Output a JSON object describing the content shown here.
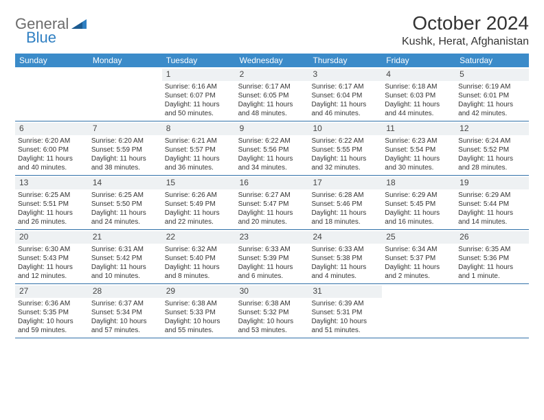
{
  "logo": {
    "text1": "General",
    "text2": "Blue"
  },
  "title": "October 2024",
  "location": "Kushk, Herat, Afghanistan",
  "colors": {
    "header_bg": "#3b8bc9",
    "row_border": "#2f6fa8",
    "daynum_bg": "#eef1f3",
    "logo_gray": "#6b6b6b",
    "logo_blue": "#2f7fc2"
  },
  "dow": [
    "Sunday",
    "Monday",
    "Tuesday",
    "Wednesday",
    "Thursday",
    "Friday",
    "Saturday"
  ],
  "weeks": [
    [
      {
        "n": "",
        "sr": "",
        "ss": "",
        "dl1": "",
        "dl2": ""
      },
      {
        "n": "",
        "sr": "",
        "ss": "",
        "dl1": "",
        "dl2": ""
      },
      {
        "n": "1",
        "sr": "Sunrise: 6:16 AM",
        "ss": "Sunset: 6:07 PM",
        "dl1": "Daylight: 11 hours",
        "dl2": "and 50 minutes."
      },
      {
        "n": "2",
        "sr": "Sunrise: 6:17 AM",
        "ss": "Sunset: 6:05 PM",
        "dl1": "Daylight: 11 hours",
        "dl2": "and 48 minutes."
      },
      {
        "n": "3",
        "sr": "Sunrise: 6:17 AM",
        "ss": "Sunset: 6:04 PM",
        "dl1": "Daylight: 11 hours",
        "dl2": "and 46 minutes."
      },
      {
        "n": "4",
        "sr": "Sunrise: 6:18 AM",
        "ss": "Sunset: 6:03 PM",
        "dl1": "Daylight: 11 hours",
        "dl2": "and 44 minutes."
      },
      {
        "n": "5",
        "sr": "Sunrise: 6:19 AM",
        "ss": "Sunset: 6:01 PM",
        "dl1": "Daylight: 11 hours",
        "dl2": "and 42 minutes."
      }
    ],
    [
      {
        "n": "6",
        "sr": "Sunrise: 6:20 AM",
        "ss": "Sunset: 6:00 PM",
        "dl1": "Daylight: 11 hours",
        "dl2": "and 40 minutes."
      },
      {
        "n": "7",
        "sr": "Sunrise: 6:20 AM",
        "ss": "Sunset: 5:59 PM",
        "dl1": "Daylight: 11 hours",
        "dl2": "and 38 minutes."
      },
      {
        "n": "8",
        "sr": "Sunrise: 6:21 AM",
        "ss": "Sunset: 5:57 PM",
        "dl1": "Daylight: 11 hours",
        "dl2": "and 36 minutes."
      },
      {
        "n": "9",
        "sr": "Sunrise: 6:22 AM",
        "ss": "Sunset: 5:56 PM",
        "dl1": "Daylight: 11 hours",
        "dl2": "and 34 minutes."
      },
      {
        "n": "10",
        "sr": "Sunrise: 6:22 AM",
        "ss": "Sunset: 5:55 PM",
        "dl1": "Daylight: 11 hours",
        "dl2": "and 32 minutes."
      },
      {
        "n": "11",
        "sr": "Sunrise: 6:23 AM",
        "ss": "Sunset: 5:54 PM",
        "dl1": "Daylight: 11 hours",
        "dl2": "and 30 minutes."
      },
      {
        "n": "12",
        "sr": "Sunrise: 6:24 AM",
        "ss": "Sunset: 5:52 PM",
        "dl1": "Daylight: 11 hours",
        "dl2": "and 28 minutes."
      }
    ],
    [
      {
        "n": "13",
        "sr": "Sunrise: 6:25 AM",
        "ss": "Sunset: 5:51 PM",
        "dl1": "Daylight: 11 hours",
        "dl2": "and 26 minutes."
      },
      {
        "n": "14",
        "sr": "Sunrise: 6:25 AM",
        "ss": "Sunset: 5:50 PM",
        "dl1": "Daylight: 11 hours",
        "dl2": "and 24 minutes."
      },
      {
        "n": "15",
        "sr": "Sunrise: 6:26 AM",
        "ss": "Sunset: 5:49 PM",
        "dl1": "Daylight: 11 hours",
        "dl2": "and 22 minutes."
      },
      {
        "n": "16",
        "sr": "Sunrise: 6:27 AM",
        "ss": "Sunset: 5:47 PM",
        "dl1": "Daylight: 11 hours",
        "dl2": "and 20 minutes."
      },
      {
        "n": "17",
        "sr": "Sunrise: 6:28 AM",
        "ss": "Sunset: 5:46 PM",
        "dl1": "Daylight: 11 hours",
        "dl2": "and 18 minutes."
      },
      {
        "n": "18",
        "sr": "Sunrise: 6:29 AM",
        "ss": "Sunset: 5:45 PM",
        "dl1": "Daylight: 11 hours",
        "dl2": "and 16 minutes."
      },
      {
        "n": "19",
        "sr": "Sunrise: 6:29 AM",
        "ss": "Sunset: 5:44 PM",
        "dl1": "Daylight: 11 hours",
        "dl2": "and 14 minutes."
      }
    ],
    [
      {
        "n": "20",
        "sr": "Sunrise: 6:30 AM",
        "ss": "Sunset: 5:43 PM",
        "dl1": "Daylight: 11 hours",
        "dl2": "and 12 minutes."
      },
      {
        "n": "21",
        "sr": "Sunrise: 6:31 AM",
        "ss": "Sunset: 5:42 PM",
        "dl1": "Daylight: 11 hours",
        "dl2": "and 10 minutes."
      },
      {
        "n": "22",
        "sr": "Sunrise: 6:32 AM",
        "ss": "Sunset: 5:40 PM",
        "dl1": "Daylight: 11 hours",
        "dl2": "and 8 minutes."
      },
      {
        "n": "23",
        "sr": "Sunrise: 6:33 AM",
        "ss": "Sunset: 5:39 PM",
        "dl1": "Daylight: 11 hours",
        "dl2": "and 6 minutes."
      },
      {
        "n": "24",
        "sr": "Sunrise: 6:33 AM",
        "ss": "Sunset: 5:38 PM",
        "dl1": "Daylight: 11 hours",
        "dl2": "and 4 minutes."
      },
      {
        "n": "25",
        "sr": "Sunrise: 6:34 AM",
        "ss": "Sunset: 5:37 PM",
        "dl1": "Daylight: 11 hours",
        "dl2": "and 2 minutes."
      },
      {
        "n": "26",
        "sr": "Sunrise: 6:35 AM",
        "ss": "Sunset: 5:36 PM",
        "dl1": "Daylight: 11 hours",
        "dl2": "and 1 minute."
      }
    ],
    [
      {
        "n": "27",
        "sr": "Sunrise: 6:36 AM",
        "ss": "Sunset: 5:35 PM",
        "dl1": "Daylight: 10 hours",
        "dl2": "and 59 minutes."
      },
      {
        "n": "28",
        "sr": "Sunrise: 6:37 AM",
        "ss": "Sunset: 5:34 PM",
        "dl1": "Daylight: 10 hours",
        "dl2": "and 57 minutes."
      },
      {
        "n": "29",
        "sr": "Sunrise: 6:38 AM",
        "ss": "Sunset: 5:33 PM",
        "dl1": "Daylight: 10 hours",
        "dl2": "and 55 minutes."
      },
      {
        "n": "30",
        "sr": "Sunrise: 6:38 AM",
        "ss": "Sunset: 5:32 PM",
        "dl1": "Daylight: 10 hours",
        "dl2": "and 53 minutes."
      },
      {
        "n": "31",
        "sr": "Sunrise: 6:39 AM",
        "ss": "Sunset: 5:31 PM",
        "dl1": "Daylight: 10 hours",
        "dl2": "and 51 minutes."
      },
      {
        "n": "",
        "sr": "",
        "ss": "",
        "dl1": "",
        "dl2": ""
      },
      {
        "n": "",
        "sr": "",
        "ss": "",
        "dl1": "",
        "dl2": ""
      }
    ]
  ]
}
